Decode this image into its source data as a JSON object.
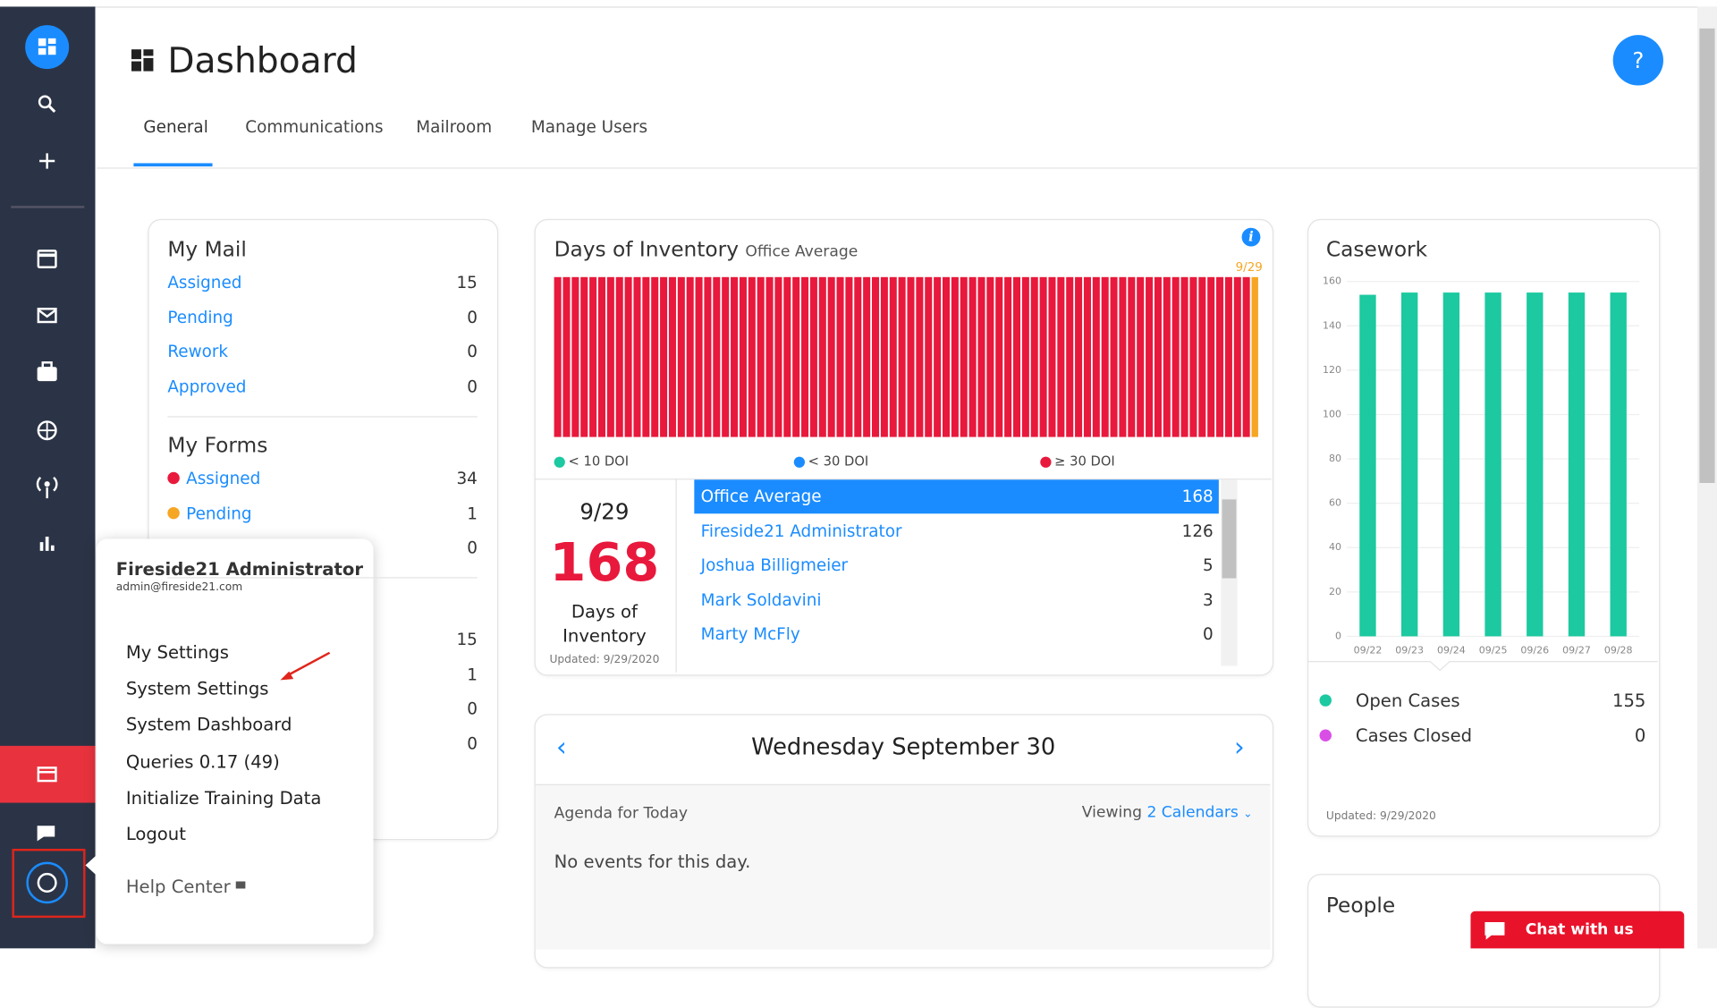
{
  "header": {
    "title": "Dashboard",
    "tabs": [
      "General",
      "Communications",
      "Mailroom",
      "Manage Users"
    ],
    "help": "?"
  },
  "my_mail": {
    "title": "My Mail",
    "items": [
      {
        "label": "Assigned",
        "count": 15
      },
      {
        "label": "Pending",
        "count": 0
      },
      {
        "label": "Rework",
        "count": 0
      },
      {
        "label": "Approved",
        "count": 0
      }
    ]
  },
  "my_forms": {
    "title": "My Forms",
    "items": [
      {
        "label": "Assigned",
        "count": 34
      },
      {
        "label": "Pending",
        "count": 1
      },
      {
        "label": null,
        "count": 0
      }
    ]
  },
  "hidden_section": {
    "counts": [
      15,
      1,
      0,
      0
    ]
  },
  "inventory": {
    "title": "Days of Inventory",
    "subtitle": "Office Average",
    "legend": [
      "< 10 DOI",
      "< 30 DOI",
      "≥ 30 DOI"
    ],
    "date": "9/29",
    "value": 168,
    "value_label": "Days of Inventory",
    "updated": "Updated: 9/29/2020",
    "table": [
      {
        "name": "Office Average",
        "value": 168
      },
      {
        "name": "Fireside21 Administrator",
        "value": 126
      },
      {
        "name": "Joshua Billigmeier",
        "value": 5
      },
      {
        "name": "Mark Soldavini",
        "value": 3
      },
      {
        "name": "Marty McFly",
        "value": 0
      }
    ]
  },
  "chart_data": [
    {
      "type": "bar",
      "values": [
        168,
        168,
        168,
        168,
        168,
        168,
        168,
        168,
        168,
        168,
        168,
        168,
        168,
        168,
        168,
        168,
        168,
        168,
        168,
        168,
        168,
        168,
        168,
        168,
        168,
        168,
        168,
        168,
        168,
        168,
        168,
        168,
        168,
        168,
        168,
        168,
        168,
        168,
        168,
        168,
        168,
        168,
        168,
        168,
        168,
        168,
        168,
        168,
        168,
        168,
        168,
        168,
        168,
        168,
        168,
        168,
        168,
        168,
        168,
        168,
        168,
        168,
        168,
        168,
        168,
        168,
        168,
        168,
        168,
        168,
        168,
        168,
        168,
        168,
        168,
        168,
        168,
        168,
        168,
        168
      ],
      "color": "#e8193c",
      "highlight_color": "#f5a623",
      "annotation": "9/29"
    },
    {
      "type": "bar",
      "title": "Casework",
      "categories": [
        "09/22",
        "09/23",
        "09/24",
        "09/25",
        "09/26",
        "09/27",
        "09/28"
      ],
      "values": [
        154,
        155,
        155,
        155,
        155,
        155,
        155
      ],
      "color": "#1cc9a0",
      "ylim": [
        0,
        160
      ],
      "yticks": [
        0,
        20,
        40,
        60,
        80,
        100,
        120,
        140,
        160
      ],
      "grid": true
    }
  ],
  "casework": {
    "legend": [
      {
        "label": "Open Cases",
        "count": 155,
        "color": "#1cc9a0"
      },
      {
        "label": "Cases Closed",
        "count": 0,
        "color": "#d94fe6"
      }
    ],
    "updated": "Updated: 9/29/2020"
  },
  "calendar": {
    "date": "Wednesday September 30",
    "agenda": "Agenda for Today",
    "viewing": "Viewing",
    "calendars": "2 Calendars",
    "empty": "No events for this day."
  },
  "people": {
    "title": "People"
  },
  "chat": "Chat with us",
  "menu": {
    "name": "Fireside21 Administrator",
    "email": "admin@fireside21.com",
    "items": [
      "My Settings",
      "System Settings",
      "System Dashboard",
      "Queries 0.17 (49)",
      "Initialize Training Data",
      "Logout"
    ],
    "help": "Help Center"
  }
}
